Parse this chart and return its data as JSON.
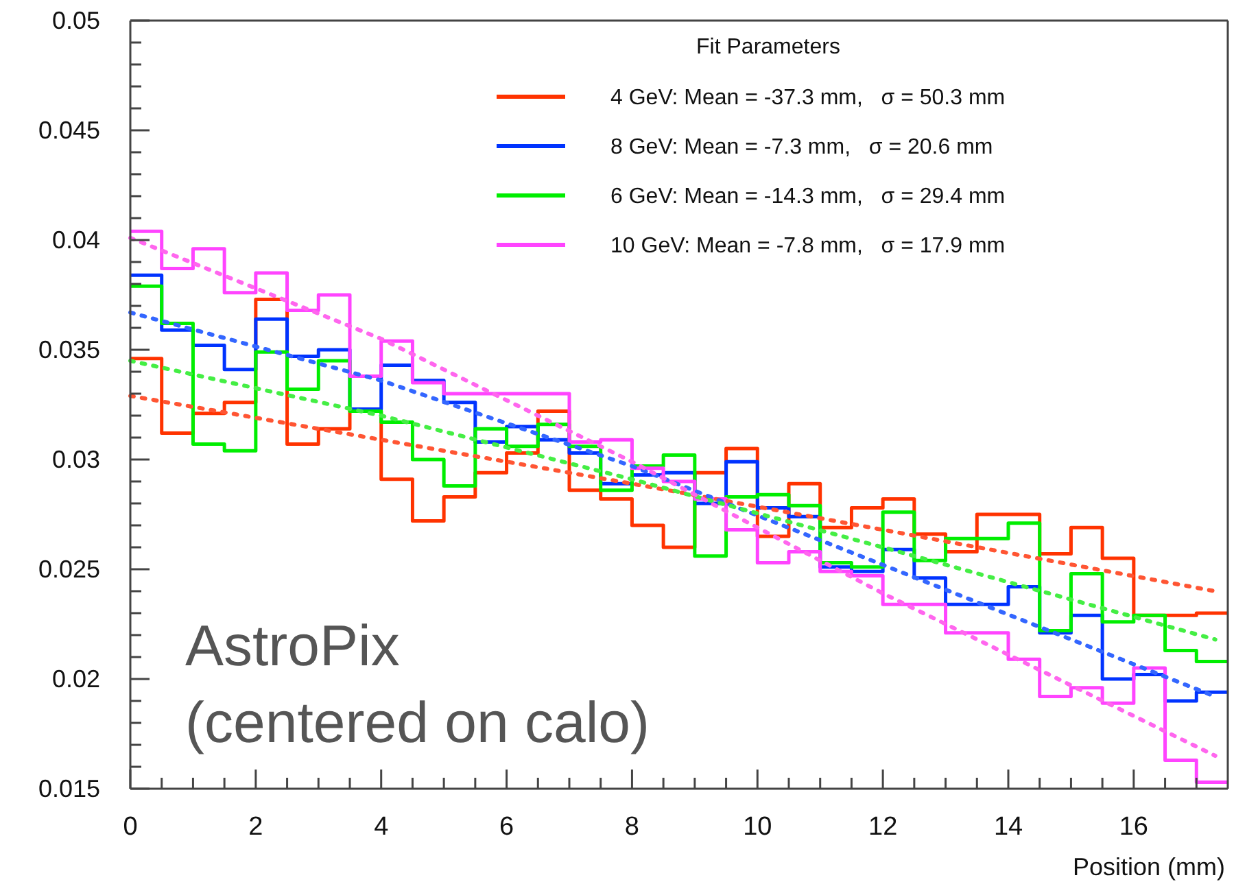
{
  "chart_data": {
    "type": "histogram",
    "xlabel": "Position (mm)",
    "legend_title": "Fit Parameters",
    "legend": "top right",
    "grid": false,
    "annotations": [
      "AstroPix\n(centered on calo)"
    ],
    "bins": [
      0,
      0.5,
      1,
      1.5,
      2,
      2.5,
      3,
      3.5,
      4,
      4.5,
      5,
      5.5,
      6,
      6.5,
      7,
      7.5,
      8,
      8.5,
      9,
      9.5,
      10,
      10.5,
      11,
      11.5,
      12,
      12.5,
      13,
      13.5,
      14,
      14.5,
      15,
      15.5,
      16,
      16.5,
      17,
      17.5
    ],
    "xlim": [
      0,
      17.5
    ],
    "xticks": [
      0,
      {
        "value": 0.5,
        "label": null
      },
      {
        "value": 1,
        "label": null
      },
      {
        "value": 1.5,
        "label": null
      },
      2,
      {
        "value": 2.5,
        "label": null
      },
      {
        "value": 3,
        "label": null
      },
      {
        "value": 3.5,
        "label": null
      },
      4,
      {
        "value": 4.5,
        "label": null
      },
      {
        "value": 5,
        "label": null
      },
      {
        "value": 5.5,
        "label": null
      },
      6,
      {
        "value": 6.5,
        "label": null
      },
      {
        "value": 7,
        "label": null
      },
      {
        "value": 7.5,
        "label": null
      },
      8,
      {
        "value": 8.5,
        "label": null
      },
      {
        "value": 9,
        "label": null
      },
      {
        "value": 9.5,
        "label": null
      },
      10,
      {
        "value": 10.5,
        "label": null
      },
      {
        "value": 11,
        "label": null
      },
      {
        "value": 11.5,
        "label": null
      },
      12,
      {
        "value": 12.5,
        "label": null
      },
      {
        "value": 13,
        "label": null
      },
      {
        "value": 13.5,
        "label": null
      },
      14,
      {
        "value": 14.5,
        "label": null
      },
      {
        "value": 15,
        "label": null
      },
      {
        "value": 15.5,
        "label": null
      },
      16,
      {
        "value": 16.5,
        "label": null
      },
      {
        "value": 17,
        "label": null
      }
    ],
    "ylim": [
      0.015,
      0.05
    ],
    "yticks": [
      0.015,
      {
        "value": 0.016,
        "label": null
      },
      {
        "value": 0.017,
        "label": null
      },
      {
        "value": 0.018,
        "label": null
      },
      {
        "value": 0.019,
        "label": null
      },
      0.02,
      {
        "value": 0.021,
        "label": null
      },
      {
        "value": 0.022,
        "label": null
      },
      {
        "value": 0.023,
        "label": null
      },
      {
        "value": 0.024,
        "label": null
      },
      0.025,
      {
        "value": 0.026,
        "label": null
      },
      {
        "value": 0.027,
        "label": null
      },
      {
        "value": 0.028,
        "label": null
      },
      {
        "value": 0.029,
        "label": null
      },
      0.03,
      {
        "value": 0.031,
        "label": null
      },
      {
        "value": 0.032,
        "label": null
      },
      {
        "value": 0.033,
        "label": null
      },
      {
        "value": 0.034,
        "label": null
      },
      0.035,
      {
        "value": 0.036,
        "label": null
      },
      {
        "value": 0.037,
        "label": null
      },
      {
        "value": 0.038,
        "label": null
      },
      {
        "value": 0.039,
        "label": null
      },
      0.04,
      {
        "value": 0.041,
        "label": null
      },
      {
        "value": 0.042,
        "label": null
      },
      {
        "value": 0.043,
        "label": null
      },
      {
        "value": 0.044,
        "label": null
      },
      0.045,
      {
        "value": 0.046,
        "label": null
      },
      {
        "value": 0.047,
        "label": null
      },
      {
        "value": 0.048,
        "label": null
      },
      {
        "value": 0.049,
        "label": null
      },
      0.05
    ],
    "series": [
      {
        "name": "4 GeV: Mean = -37.3 mm,   σ = 50.3 mm",
        "color": "#ff3300",
        "values": [
          0.0346,
          0.0312,
          0.0321,
          0.0326,
          0.0373,
          0.0307,
          0.0314,
          0.0322,
          0.0291,
          0.0272,
          0.0283,
          0.0294,
          0.0303,
          0.0322,
          0.0286,
          0.0282,
          0.027,
          0.026,
          0.0294,
          0.0305,
          0.0265,
          0.0289,
          0.0269,
          0.0278,
          0.0282,
          0.0266,
          0.0258,
          0.0275,
          0.0275,
          0.0257,
          0.0269,
          0.0255,
          0.0229,
          0.0229,
          0.023
        ]
      },
      {
        "name": "8 GeV: Mean = -7.3 mm,   σ = 20.6 mm",
        "color": "#0033ff",
        "values": [
          0.0384,
          0.0359,
          0.0352,
          0.0341,
          0.0364,
          0.0347,
          0.035,
          0.0323,
          0.0343,
          0.0336,
          0.0326,
          0.0308,
          0.0315,
          0.0309,
          0.0303,
          0.0289,
          0.0293,
          0.0294,
          0.028,
          0.0299,
          0.0278,
          0.0274,
          0.0251,
          0.0249,
          0.0259,
          0.0246,
          0.0234,
          0.0234,
          0.0242,
          0.0221,
          0.0229,
          0.02,
          0.0202,
          0.019,
          0.0194
        ]
      },
      {
        "name": "6 GeV: Mean = -14.3 mm,   σ = 29.4 mm",
        "color": "#00ee00",
        "values": [
          0.0379,
          0.0362,
          0.0307,
          0.0304,
          0.0349,
          0.0332,
          0.0345,
          0.0322,
          0.0317,
          0.03,
          0.0288,
          0.0314,
          0.0306,
          0.0316,
          0.0306,
          0.0286,
          0.0297,
          0.0302,
          0.0256,
          0.0283,
          0.0284,
          0.0279,
          0.0253,
          0.0251,
          0.0276,
          0.0254,
          0.0264,
          0.0264,
          0.0271,
          0.0222,
          0.0248,
          0.0226,
          0.0229,
          0.0213,
          0.0208
        ]
      },
      {
        "name": "10 GeV: Mean = -7.8 mm,   σ = 17.9 mm",
        "color": "#ff44ff",
        "values": [
          0.0404,
          0.0387,
          0.0396,
          0.0376,
          0.0385,
          0.0368,
          0.0375,
          0.0338,
          0.0354,
          0.0335,
          0.033,
          0.033,
          0.033,
          0.033,
          0.0308,
          0.0309,
          0.0296,
          0.029,
          0.0282,
          0.0268,
          0.0253,
          0.0258,
          0.0249,
          0.0247,
          0.0234,
          0.0234,
          0.0221,
          0.0221,
          0.0209,
          0.0192,
          0.0196,
          0.0189,
          0.0205,
          0.0163,
          0.0153
        ]
      },
      {
        "type": "line",
        "line_style": "dotted",
        "color": "#ff5533",
        "x": [
          0,
          4,
          8,
          12,
          17.3
        ],
        "values": [
          0.0329,
          0.0309,
          0.0289,
          0.0268,
          0.024
        ]
      },
      {
        "type": "line",
        "line_style": "dotted",
        "color": "#3366ff",
        "x": [
          0,
          4,
          8,
          12,
          17.3
        ],
        "values": [
          0.0367,
          0.0336,
          0.0297,
          0.0252,
          0.0192
        ]
      },
      {
        "type": "line",
        "line_style": "dotted",
        "color": "#44ee44",
        "x": [
          0,
          4,
          8,
          12,
          17.3
        ],
        "values": [
          0.0345,
          0.032,
          0.0291,
          0.026,
          0.0218
        ]
      },
      {
        "type": "line",
        "line_style": "dotted",
        "color": "#ff66ee",
        "x": [
          0,
          4,
          8,
          12,
          17.3
        ],
        "values": [
          0.0401,
          0.0355,
          0.0299,
          0.0239,
          0.0165
        ]
      }
    ]
  }
}
